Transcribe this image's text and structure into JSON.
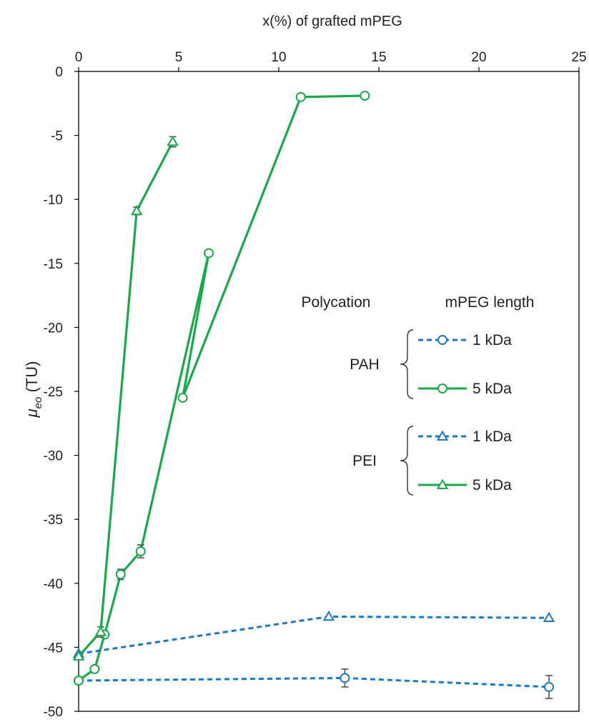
{
  "chart_data": {
    "type": "scatter",
    "title": "",
    "xlabel": "x(%) of grafted mPEG",
    "ylabel": "μeo (TU)",
    "ylabel_main": "μ",
    "ylabel_sub": "eo",
    "ylabel_unit": " (TU)",
    "xlim": [
      0,
      25
    ],
    "ylim": [
      -50,
      0
    ],
    "x_ticks": [
      "0",
      "5",
      "10",
      "15",
      "20",
      "25"
    ],
    "y_ticks": [
      "0",
      "-5",
      "-10",
      "-15",
      "-20",
      "-25",
      "-30",
      "-35",
      "-40",
      "-45",
      "-50"
    ],
    "grid": false,
    "legend": {
      "placement": "right-middle",
      "col_header_polycation": "Polycation",
      "col_header_length": "mPEG length",
      "groups": [
        {
          "polycation": "PAH",
          "entries": [
            {
              "label": "1 kDa",
              "series": 0
            },
            {
              "label": "5 kDa",
              "series": 1
            }
          ]
        },
        {
          "polycation": "PEI",
          "entries": [
            {
              "label": "1 kDa",
              "series": 2
            },
            {
              "label": "5 kDa",
              "series": 3
            }
          ]
        }
      ]
    },
    "series": [
      {
        "polycation": "PAH",
        "length": "1 kDa",
        "color": "#1f77c4",
        "line": "dashed",
        "marker": "circle",
        "points": [
          {
            "x": 0,
            "y": -47.6,
            "err": 0
          },
          {
            "x": 13.3,
            "y": -47.4,
            "err": 0.7
          },
          {
            "x": 23.5,
            "y": -48.1,
            "err": 0.9
          }
        ]
      },
      {
        "polycation": "PAH",
        "length": "5 kDa",
        "color": "#1aa84a",
        "line": "solid",
        "marker": "circle",
        "points": [
          {
            "x": 0,
            "y": -47.6,
            "err": 0
          },
          {
            "x": 0.8,
            "y": -46.7,
            "err": 0
          },
          {
            "x": 1.3,
            "y": -44.0,
            "err": 0
          },
          {
            "x": 2.1,
            "y": -39.3,
            "err": 0.4
          },
          {
            "x": 3.1,
            "y": -37.5,
            "err": 0.5
          },
          {
            "x": 6.5,
            "y": -14.2,
            "err": 0
          },
          {
            "x": 5.2,
            "y": -25.5,
            "err": 0
          },
          {
            "x": 11.1,
            "y": -2.0,
            "err": 0
          },
          {
            "x": 14.3,
            "y": -1.9,
            "err": 0
          }
        ]
      },
      {
        "polycation": "PEI",
        "length": "1 kDa",
        "color": "#1f77c4",
        "line": "dashed",
        "marker": "triangle",
        "points": [
          {
            "x": 0,
            "y": -45.5,
            "err": 0
          },
          {
            "x": 12.5,
            "y": -42.6,
            "err": 0
          },
          {
            "x": 23.5,
            "y": -42.7,
            "err": 0
          }
        ]
      },
      {
        "polycation": "PEI",
        "length": "5 kDa",
        "color": "#1aa84a",
        "line": "solid",
        "marker": "triangle",
        "points": [
          {
            "x": 0,
            "y": -45.7,
            "err": 0
          },
          {
            "x": 1.1,
            "y": -43.8,
            "err": 0.4
          },
          {
            "x": 2.9,
            "y": -10.9,
            "err": 0.3
          },
          {
            "x": 4.7,
            "y": -5.5,
            "err": 0.4
          }
        ]
      }
    ]
  }
}
